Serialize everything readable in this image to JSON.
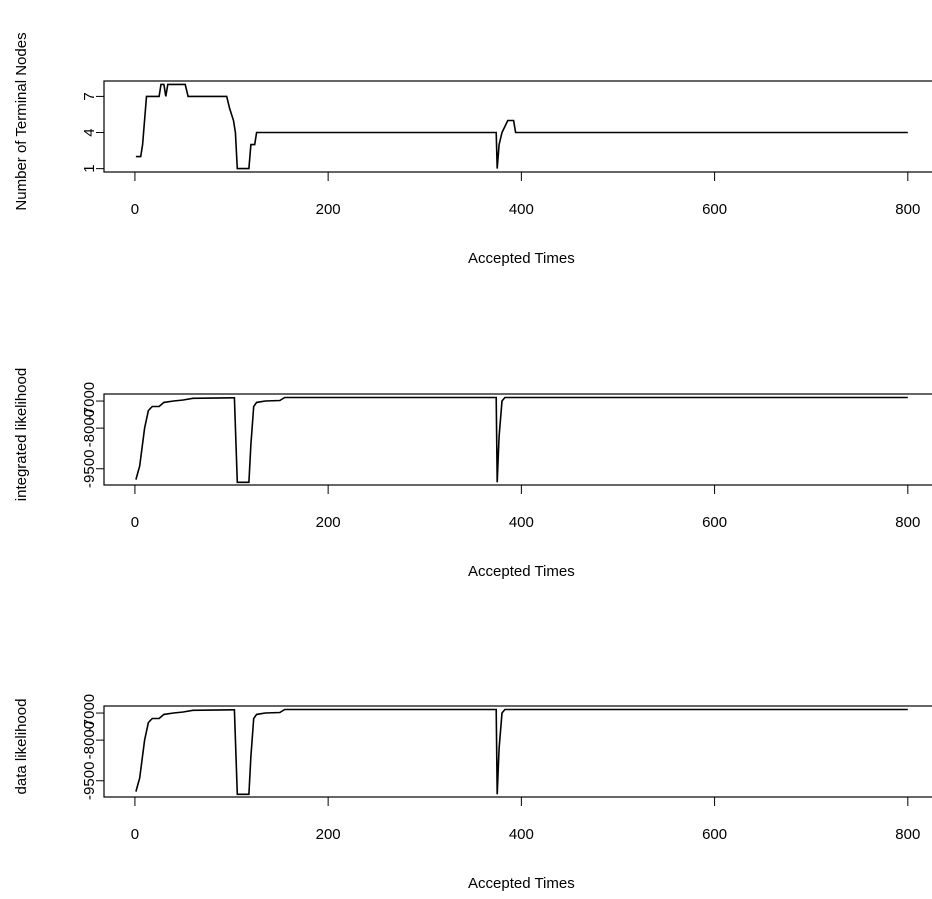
{
  "chart_data": [
    {
      "type": "line",
      "xlabel": "Accepted Times",
      "ylabel": "Number of Terminal Nodes",
      "color": "#000000",
      "x": [
        1,
        6,
        8,
        12,
        15,
        25,
        27,
        30,
        32,
        34,
        37,
        52,
        55,
        95,
        98,
        102,
        104,
        106,
        118,
        120,
        124,
        126,
        374,
        375,
        377,
        380,
        386,
        392,
        394,
        800
      ],
      "values": [
        2,
        2,
        3,
        7,
        7,
        7,
        8,
        8,
        7,
        8,
        8,
        8,
        7,
        7,
        6,
        5,
        4,
        1,
        1,
        3,
        3,
        4,
        4,
        1,
        3,
        4,
        5,
        5,
        4,
        4
      ],
      "xlim": [
        -32,
        824
      ],
      "ylim": [
        0.72,
        8.28
      ],
      "xticks": [
        0,
        200,
        400,
        600,
        800
      ],
      "yticks": [
        1,
        4,
        7
      ]
    },
    {
      "type": "line",
      "xlabel": "Accepted Times",
      "ylabel": "integrated likelihood",
      "color": "#000000",
      "x": [
        1,
        5,
        10,
        14,
        18,
        25,
        30,
        40,
        50,
        60,
        100,
        103,
        106,
        118,
        120,
        123,
        126,
        135,
        150,
        155,
        374,
        375,
        377,
        380,
        383,
        800
      ],
      "values": [
        -9900,
        -9400,
        -8000,
        -7350,
        -7200,
        -7200,
        -7050,
        -7000,
        -6960,
        -6900,
        -6880,
        -6880,
        -10000,
        -10000,
        -8600,
        -7200,
        -7050,
        -7000,
        -6980,
        -6870,
        -6870,
        -10000,
        -8300,
        -7000,
        -6870,
        -6870
      ],
      "xlim": [
        -32,
        824
      ],
      "ylim": [
        -10100,
        -6740
      ],
      "xticks": [
        0,
        200,
        400,
        600,
        800
      ],
      "yticks": [
        -9500,
        -8000,
        -7000
      ]
    },
    {
      "type": "line",
      "xlabel": "Accepted Times",
      "ylabel": "data likelihood",
      "color": "#000000",
      "x": [
        1,
        5,
        10,
        14,
        18,
        25,
        30,
        40,
        50,
        60,
        100,
        103,
        106,
        118,
        120,
        123,
        126,
        135,
        150,
        155,
        374,
        375,
        377,
        380,
        383,
        800
      ],
      "values": [
        -9900,
        -9400,
        -8000,
        -7350,
        -7200,
        -7200,
        -7050,
        -7000,
        -6960,
        -6900,
        -6880,
        -6880,
        -10000,
        -10000,
        -8600,
        -7200,
        -7050,
        -7000,
        -6980,
        -6870,
        -6870,
        -10000,
        -8300,
        -7000,
        -6870,
        -6870
      ],
      "xlim": [
        -32,
        824
      ],
      "ylim": [
        -10100,
        -6740
      ],
      "xticks": [
        0,
        200,
        400,
        600,
        800
      ],
      "yticks": [
        -9500,
        -8000,
        -7000
      ]
    }
  ]
}
